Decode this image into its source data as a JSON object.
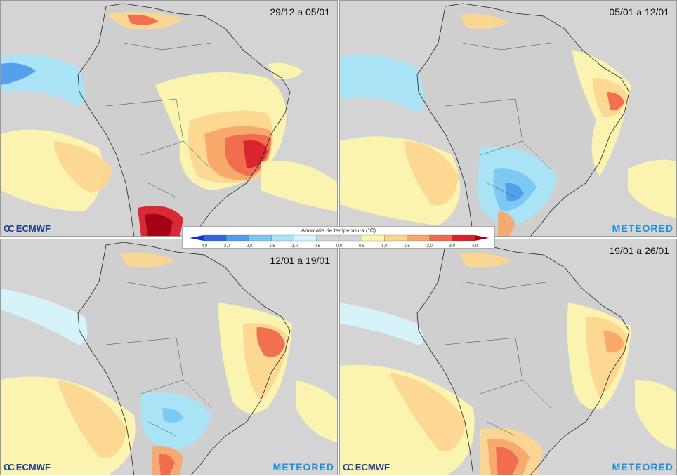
{
  "panels": [
    {
      "period": "29/12 a 05/01",
      "logos": [
        "ECMWF"
      ]
    },
    {
      "period": "05/01 a 12/01",
      "logos": [
        "METEORED"
      ]
    },
    {
      "period": "12/01 a 19/01",
      "logos": [
        "ECMWF",
        "METEORED"
      ]
    },
    {
      "period": "19/01 a 26/01",
      "logos": [
        "ECMWF",
        "METEORED"
      ]
    }
  ],
  "brand": {
    "ecmwf": "ECMWF",
    "meteored": "METEORED"
  },
  "legend": {
    "title": "Anomalia de temperatura (°C)",
    "ticks": [
      "-4,0",
      "-3,0",
      "-2,0",
      "-1,5",
      "-1,0",
      "-0,5",
      "0,0",
      "0,5",
      "1,0",
      "1,5",
      "2,0",
      "3,0",
      "4,0"
    ],
    "colors": [
      "#1a2fd0",
      "#2f66e0",
      "#4f9cec",
      "#79c8f3",
      "#a9e4f8",
      "#d6f4fb",
      "#d4d4d4",
      "#d4d4d4",
      "#fdf4ae",
      "#fcd690",
      "#f8a66a",
      "#ef6a4c",
      "#d8202e",
      "#a00012"
    ]
  }
}
